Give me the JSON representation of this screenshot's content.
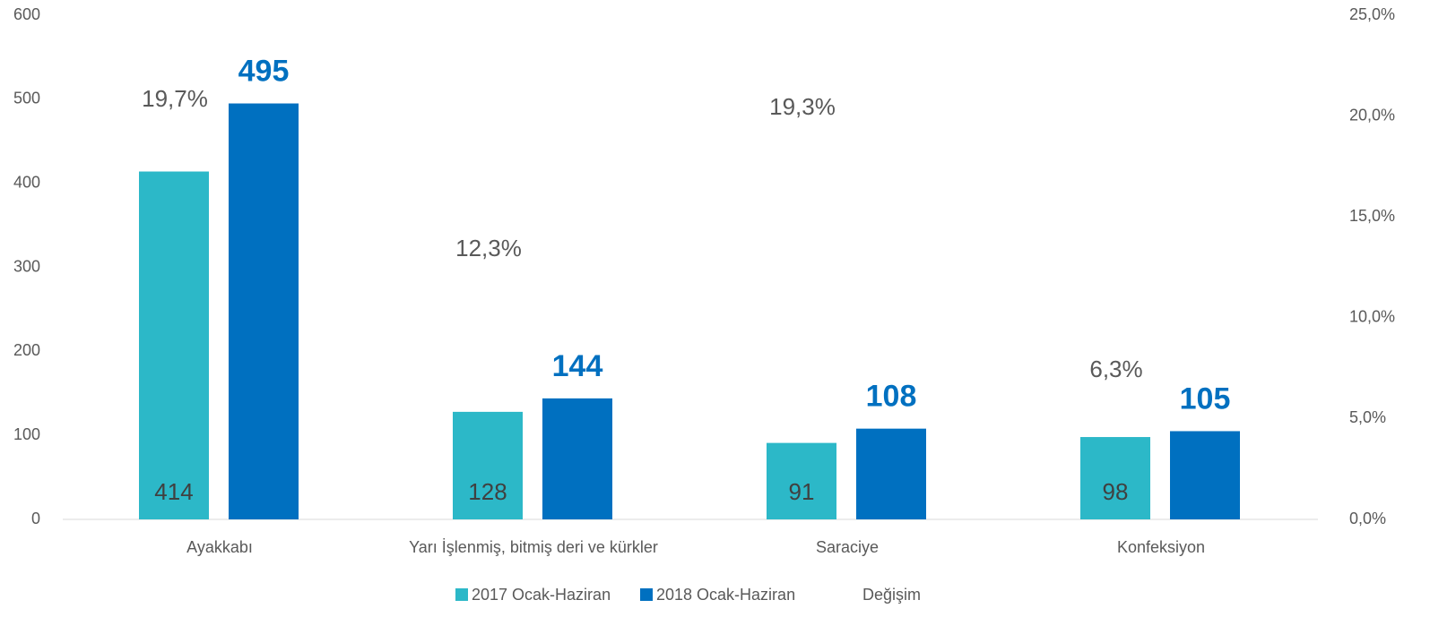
{
  "chart_data": {
    "type": "bar",
    "categories": [
      "Ayakkabı",
      "Yarı İşlenmiş, bitmiş deri ve kürkler",
      "Saraciye",
      "Konfeksiyon"
    ],
    "series": [
      {
        "name": "2017 Ocak-Haziran",
        "color": "#2cb8c8",
        "values": [
          414,
          128,
          91,
          98
        ]
      },
      {
        "name": "2018 Ocak-Haziran",
        "color": "#0070c0",
        "values": [
          495,
          144,
          108,
          105
        ]
      },
      {
        "name": "Değişim",
        "color": "none",
        "axis": "y2",
        "values": [
          19.7,
          12.3,
          19.3,
          6.3
        ],
        "value_labels": [
          "19,7%",
          "12,3%",
          "19,3%",
          "6,3%"
        ]
      }
    ],
    "ylim": [
      0,
      600
    ],
    "yticks": [
      0,
      100,
      200,
      300,
      400,
      500,
      600
    ],
    "y2lim": [
      0,
      25
    ],
    "y2ticks": [
      {
        "value": 0,
        "label": "0,0%"
      },
      {
        "value": 5,
        "label": "5,0%"
      },
      {
        "value": 10,
        "label": "10,0%"
      },
      {
        "value": 15,
        "label": "15,0%"
      },
      {
        "value": 20,
        "label": "20,0%"
      },
      {
        "value": 25,
        "label": "25,0%"
      }
    ],
    "grid": false,
    "legend": "bottom"
  }
}
